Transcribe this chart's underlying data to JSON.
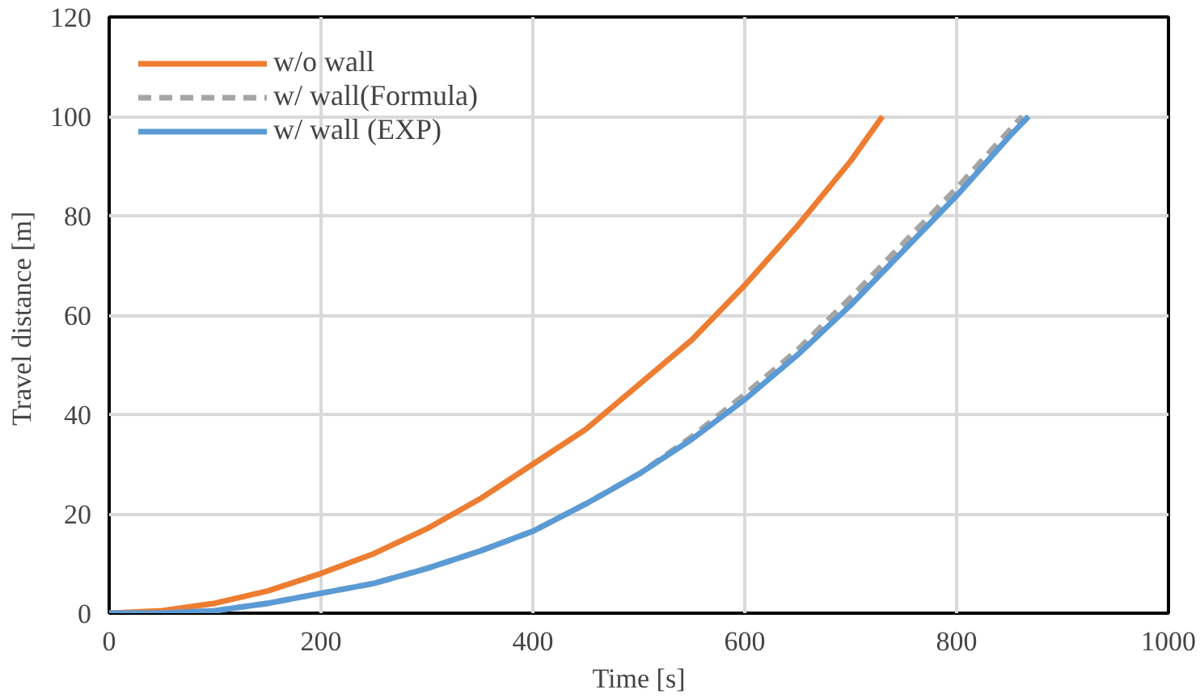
{
  "chart_data": {
    "type": "line",
    "xlabel": "Time [s]",
    "ylabel": "Travel  distance [m]",
    "xlim": [
      0,
      1000
    ],
    "ylim": [
      0,
      120
    ],
    "xticks": [
      0,
      200,
      400,
      600,
      800,
      1000
    ],
    "yticks": [
      0,
      20,
      40,
      60,
      80,
      100,
      120
    ],
    "grid": true,
    "legend": "top left",
    "marker": "none",
    "series": [
      {
        "name": "w/o wall",
        "color": "#ed7d31",
        "line_style": "solid",
        "x": [
          0,
          50,
          100,
          150,
          200,
          250,
          300,
          350,
          400,
          450,
          500,
          550,
          600,
          650,
          700,
          730
        ],
        "values": [
          0,
          0.5,
          2,
          4.5,
          8,
          12,
          17,
          23,
          30,
          37,
          46,
          55,
          66,
          78,
          91,
          100
        ]
      },
      {
        "name": "w/ wall(Formula)",
        "color": "#a5a5a5",
        "line_style": "dashed",
        "x": [
          0,
          50,
          100,
          150,
          200,
          250,
          300,
          350,
          400,
          450,
          500,
          550,
          600,
          650,
          700,
          750,
          800,
          862
        ],
        "values": [
          0,
          0,
          0.5,
          2,
          4,
          6,
          9,
          12.5,
          16.5,
          22,
          28,
          35.5,
          44,
          53,
          63.5,
          74.5,
          85.5,
          100
        ]
      },
      {
        "name": "w/ wall (EXP)",
        "color": "#5b9bd5",
        "line_style": "solid",
        "x": [
          0,
          50,
          100,
          150,
          200,
          250,
          300,
          350,
          400,
          450,
          500,
          550,
          600,
          650,
          700,
          750,
          800,
          850,
          868
        ],
        "values": [
          0,
          0,
          0.5,
          2,
          4,
          6,
          9,
          12.5,
          16.5,
          22,
          28,
          35,
          43,
          52,
          62,
          73,
          84,
          96,
          100
        ]
      }
    ]
  }
}
